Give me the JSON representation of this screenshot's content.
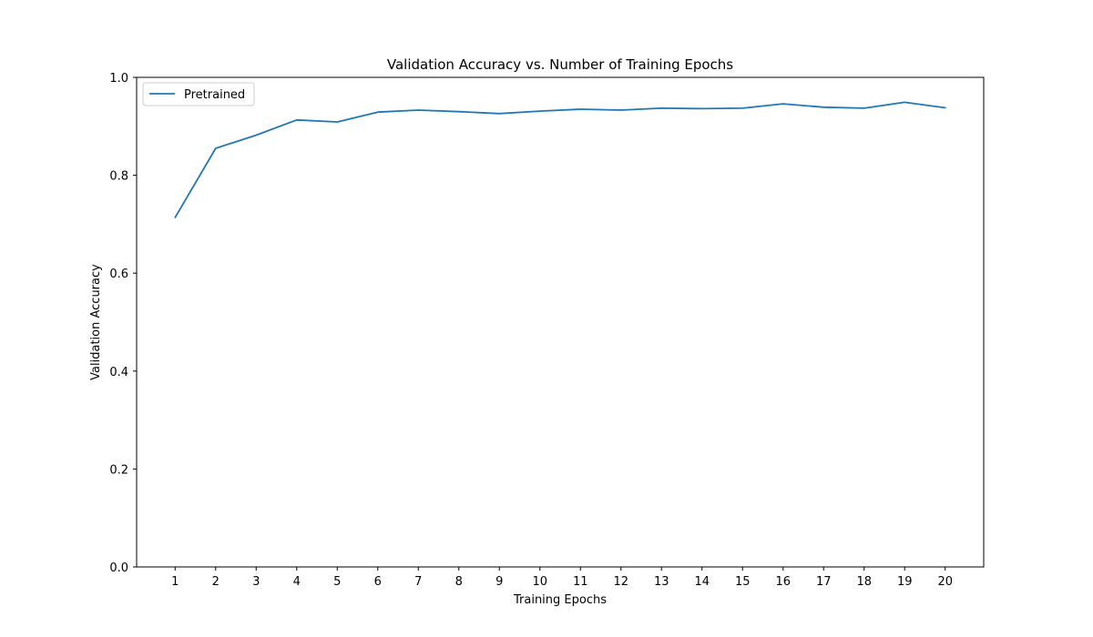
{
  "chart_data": {
    "type": "line",
    "title": "Validation Accuracy vs. Number of Training Epochs",
    "xlabel": "Training Epochs",
    "ylabel": "Validation Accuracy",
    "x": [
      1,
      2,
      3,
      4,
      5,
      6,
      7,
      8,
      9,
      10,
      11,
      12,
      13,
      14,
      15,
      16,
      17,
      18,
      19,
      20
    ],
    "x_ticks": [
      "1",
      "2",
      "3",
      "4",
      "5",
      "6",
      "7",
      "8",
      "9",
      "10",
      "11",
      "12",
      "13",
      "14",
      "15",
      "16",
      "17",
      "18",
      "19",
      "20"
    ],
    "y_ticks": [
      "0.0",
      "0.2",
      "0.4",
      "0.6",
      "0.8",
      "1.0"
    ],
    "ylim": [
      0,
      1
    ],
    "xlim": [
      0.05,
      20.95
    ],
    "grid": false,
    "legend_position": "upper left",
    "series": [
      {
        "name": "Pretrained",
        "color": "#1f77b4",
        "values": [
          0.714,
          0.855,
          0.882,
          0.913,
          0.909,
          0.929,
          0.933,
          0.93,
          0.926,
          0.931,
          0.935,
          0.933,
          0.937,
          0.936,
          0.937,
          0.946,
          0.939,
          0.937,
          0.949,
          0.938
        ]
      }
    ]
  }
}
